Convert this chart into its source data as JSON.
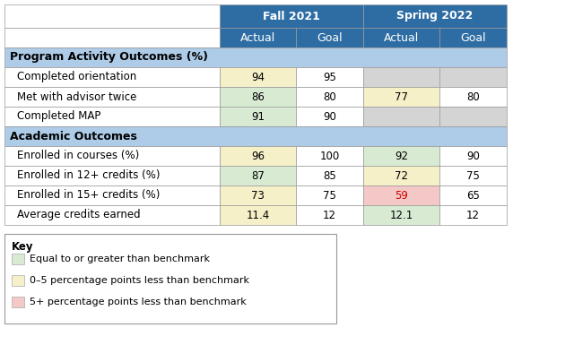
{
  "rows": [
    {
      "label": "Completed orientation",
      "fall_actual": "94",
      "fall_goal": "95",
      "spring_actual": "",
      "spring_goal": "",
      "fall_actual_bg": "#f5f0c8",
      "fall_goal_bg": "#ffffff",
      "spring_actual_bg": "#d4d4d4",
      "spring_goal_bg": "#d4d4d4",
      "fall_actual_color": "#000000",
      "spring_actual_color": "#000000",
      "section": "program"
    },
    {
      "label": "Met with advisor twice",
      "fall_actual": "86",
      "fall_goal": "80",
      "spring_actual": "77",
      "spring_goal": "80",
      "fall_actual_bg": "#d9ead3",
      "fall_goal_bg": "#ffffff",
      "spring_actual_bg": "#f5f0c8",
      "spring_goal_bg": "#ffffff",
      "fall_actual_color": "#000000",
      "spring_actual_color": "#000000",
      "section": "program"
    },
    {
      "label": "Completed MAP",
      "fall_actual": "91",
      "fall_goal": "90",
      "spring_actual": "",
      "spring_goal": "",
      "fall_actual_bg": "#d9ead3",
      "fall_goal_bg": "#ffffff",
      "spring_actual_bg": "#d4d4d4",
      "spring_goal_bg": "#d4d4d4",
      "fall_actual_color": "#000000",
      "spring_actual_color": "#000000",
      "section": "program"
    },
    {
      "label": "Enrolled in courses (%)",
      "fall_actual": "96",
      "fall_goal": "100",
      "spring_actual": "92",
      "spring_goal": "90",
      "fall_actual_bg": "#f5f0c8",
      "fall_goal_bg": "#ffffff",
      "spring_actual_bg": "#d9ead3",
      "spring_goal_bg": "#ffffff",
      "fall_actual_color": "#000000",
      "spring_actual_color": "#000000",
      "section": "academic"
    },
    {
      "label": "Enrolled in 12+ credits (%)",
      "fall_actual": "87",
      "fall_goal": "85",
      "spring_actual": "72",
      "spring_goal": "75",
      "fall_actual_bg": "#d9ead3",
      "fall_goal_bg": "#ffffff",
      "spring_actual_bg": "#f5f0c8",
      "spring_goal_bg": "#ffffff",
      "fall_actual_color": "#000000",
      "spring_actual_color": "#000000",
      "section": "academic"
    },
    {
      "label": "Enrolled in 15+ credits (%)",
      "fall_actual": "73",
      "fall_goal": "75",
      "spring_actual": "59",
      "spring_goal": "65",
      "fall_actual_bg": "#f5f0c8",
      "fall_goal_bg": "#ffffff",
      "spring_actual_bg": "#f5c8c8",
      "spring_goal_bg": "#ffffff",
      "fall_actual_color": "#000000",
      "spring_actual_color": "#cc0000",
      "section": "academic"
    },
    {
      "label": "Average credits earned",
      "fall_actual": "11.4",
      "fall_goal": "12",
      "spring_actual": "12.1",
      "spring_goal": "12",
      "fall_actual_bg": "#f5f0c8",
      "fall_goal_bg": "#ffffff",
      "spring_actual_bg": "#d9ead3",
      "spring_goal_bg": "#ffffff",
      "fall_actual_color": "#000000",
      "spring_actual_color": "#000000",
      "section": "academic"
    }
  ],
  "col_header_bg": "#2e6da4",
  "col_header_color": "#ffffff",
  "section_header_bg": "#aecce8",
  "section_header_color": "#000000",
  "key_items": [
    {
      "color": "#d9ead3",
      "label": "Equal to or greater than benchmark"
    },
    {
      "color": "#f5f0c8",
      "label": "0–5 percentage points less than benchmark"
    },
    {
      "color": "#f5c8c8",
      "label": "5+ percentage points less than benchmark"
    }
  ],
  "fig_width": 6.3,
  "fig_height": 3.85,
  "dpi": 100
}
